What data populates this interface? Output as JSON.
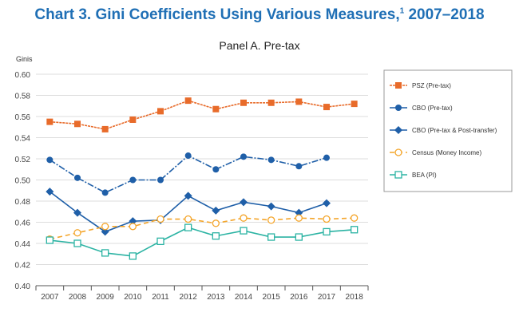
{
  "title": "Chart 3. Gini Coefficients Using Various Measures,",
  "title_sup": "1",
  "title_tail": " 2007–2018",
  "chart_data": {
    "type": "line",
    "subtitle": "Panel A. Pre-tax",
    "ylabel": "Ginis",
    "ylim": [
      0.4,
      0.6
    ],
    "yticks": [
      "0.40",
      "0.42",
      "0.44",
      "0.46",
      "0.48",
      "0.50",
      "0.52",
      "0.54",
      "0.56",
      "0.58",
      "0.60"
    ],
    "categories": [
      "2007",
      "2008",
      "2009",
      "2010",
      "2011",
      "2012",
      "2013",
      "2014",
      "2015",
      "2016",
      "2017",
      "2018"
    ],
    "grid": true,
    "legend_position": "right",
    "series": [
      {
        "name": "PSZ (Pre-tax)",
        "color": "#e86b2a",
        "marker": "square",
        "dash": "3,1",
        "values": [
          0.555,
          0.553,
          0.548,
          0.557,
          0.565,
          0.575,
          0.567,
          0.573,
          0.573,
          0.574,
          0.569,
          0.572
        ]
      },
      {
        "name": "CBO (Pre-tax)",
        "color": "#1f5fa8",
        "marker": "circle",
        "dash": "8,2,2,2",
        "values": [
          0.519,
          0.502,
          0.488,
          0.5,
          0.5,
          0.523,
          0.51,
          0.522,
          0.519,
          0.513,
          0.521,
          null
        ]
      },
      {
        "name": "CBO (Pre-tax & Post-transfer)",
        "color": "#1f5fa8",
        "marker": "diamond",
        "dash": "",
        "values": [
          0.489,
          0.469,
          0.451,
          0.461,
          0.462,
          0.485,
          0.471,
          0.479,
          0.475,
          0.469,
          0.478,
          null
        ]
      },
      {
        "name": "Census (Money Income)",
        "color": "#f4a52a",
        "marker": "open-circle",
        "dash": "6,4",
        "values": [
          0.444,
          0.45,
          0.456,
          0.456,
          0.463,
          0.463,
          0.459,
          0.464,
          0.462,
          0.464,
          0.463,
          0.464
        ]
      },
      {
        "name": "BEA (PI)",
        "color": "#2bb3a3",
        "marker": "open-square",
        "dash": "",
        "values": [
          0.443,
          0.44,
          0.431,
          0.428,
          0.442,
          0.455,
          0.447,
          0.452,
          0.446,
          0.446,
          0.451,
          0.453
        ]
      }
    ]
  }
}
